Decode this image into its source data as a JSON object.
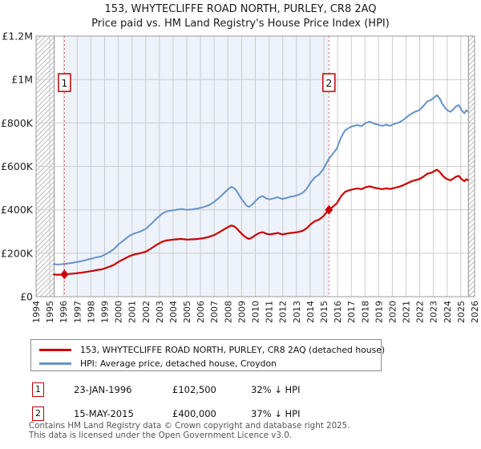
{
  "title": {
    "line1": "153, WHYTECLIFFE ROAD NORTH, PURLEY, CR8 2AQ",
    "line2": "Price paid vs. HM Land Registry's House Price Index (HPI)"
  },
  "colors": {
    "property_line": "#cc0000",
    "hpi_line": "#6593c9",
    "shade": "#edf2fb",
    "grid": "#cccccc",
    "frame": "#999999",
    "hatch": "#bbbbbb",
    "sale_dashed_line": "#e06060",
    "marker_fill": "#cc0000",
    "flag_border": "#bb0000",
    "tick_text": "#222222"
  },
  "chart_data": {
    "type": "line",
    "x_axis": {
      "min": 1994,
      "max": 2026,
      "tick_labels": [
        "1994",
        "1995",
        "1996",
        "1997",
        "1998",
        "1999",
        "2000",
        "2001",
        "2002",
        "2003",
        "2004",
        "2005",
        "2006",
        "2007",
        "2008",
        "2009",
        "2010",
        "2011",
        "2012",
        "2013",
        "2014",
        "2015",
        "2016",
        "2017",
        "2018",
        "2019",
        "2020",
        "2021",
        "2022",
        "2023",
        "2024",
        "2025",
        "2026"
      ]
    },
    "y_axis": {
      "min": 0,
      "max_thousands": 1200,
      "tick_values_thousands": [
        0,
        200,
        400,
        600,
        800,
        1000,
        1200
      ],
      "tick_labels": [
        "£0",
        "£200K",
        "£400K",
        "£600K",
        "£800K",
        "£1M",
        "£1.2M"
      ]
    },
    "values_unit": "GBP thousands",
    "no_data_hatch_regions": [
      [
        1994,
        1995.32
      ],
      [
        2025.55,
        2026
      ]
    ],
    "ownership_shade_region": [
      1996.07,
      2015.37
    ],
    "sales": [
      {
        "num": "1",
        "year": 1996.07,
        "value": 102.5
      },
      {
        "num": "2",
        "year": 2015.37,
        "value": 400
      }
    ],
    "series": [
      {
        "name": "HPI: Average price, detached house, Croydon",
        "color_key": "hpi_line",
        "width": 2,
        "points": [
          [
            1995.3,
            150
          ],
          [
            1995.55,
            148
          ],
          [
            1995.8,
            149
          ],
          [
            1996.07,
            151
          ],
          [
            1996.35,
            153
          ],
          [
            1996.65,
            156
          ],
          [
            1996.95,
            159
          ],
          [
            1997.25,
            163
          ],
          [
            1997.55,
            167
          ],
          [
            1997.85,
            172
          ],
          [
            1998.15,
            177
          ],
          [
            1998.45,
            182
          ],
          [
            1998.75,
            185
          ],
          [
            1999.05,
            195
          ],
          [
            1999.35,
            205
          ],
          [
            1999.7,
            220
          ],
          [
            2000.0,
            240
          ],
          [
            2000.4,
            260
          ],
          [
            2000.8,
            280
          ],
          [
            2001.2,
            292
          ],
          [
            2001.6,
            300
          ],
          [
            2002.0,
            312
          ],
          [
            2002.4,
            335
          ],
          [
            2002.8,
            360
          ],
          [
            2003.2,
            382
          ],
          [
            2003.5,
            392
          ],
          [
            2003.8,
            396
          ],
          [
            2004.2,
            400
          ],
          [
            2004.6,
            404
          ],
          [
            2005.0,
            400
          ],
          [
            2005.4,
            402
          ],
          [
            2005.8,
            406
          ],
          [
            2006.2,
            412
          ],
          [
            2006.6,
            421
          ],
          [
            2007.0,
            436
          ],
          [
            2007.4,
            458
          ],
          [
            2007.8,
            482
          ],
          [
            2008.05,
            497
          ],
          [
            2008.25,
            506
          ],
          [
            2008.45,
            500
          ],
          [
            2008.65,
            486
          ],
          [
            2008.85,
            464
          ],
          [
            2009.1,
            440
          ],
          [
            2009.35,
            420
          ],
          [
            2009.55,
            413
          ],
          [
            2009.8,
            426
          ],
          [
            2010.05,
            443
          ],
          [
            2010.3,
            458
          ],
          [
            2010.55,
            463
          ],
          [
            2010.8,
            452
          ],
          [
            2011.05,
            448
          ],
          [
            2011.35,
            453
          ],
          [
            2011.65,
            458
          ],
          [
            2011.95,
            450
          ],
          [
            2012.25,
            454
          ],
          [
            2012.55,
            460
          ],
          [
            2012.85,
            463
          ],
          [
            2013.15,
            469
          ],
          [
            2013.45,
            478
          ],
          [
            2013.75,
            497
          ],
          [
            2014.05,
            527
          ],
          [
            2014.35,
            550
          ],
          [
            2014.65,
            562
          ],
          [
            2014.95,
            586
          ],
          [
            2015.2,
            615
          ],
          [
            2015.37,
            635
          ],
          [
            2015.65,
            658
          ],
          [
            2015.95,
            682
          ],
          [
            2016.25,
            733
          ],
          [
            2016.55,
            766
          ],
          [
            2016.85,
            778
          ],
          [
            2017.15,
            786
          ],
          [
            2017.45,
            790
          ],
          [
            2017.75,
            785
          ],
          [
            2018.05,
            800
          ],
          [
            2018.35,
            806
          ],
          [
            2018.65,
            797
          ],
          [
            2018.95,
            792
          ],
          [
            2019.25,
            786
          ],
          [
            2019.55,
            792
          ],
          [
            2019.85,
            787
          ],
          [
            2020.15,
            796
          ],
          [
            2020.45,
            801
          ],
          [
            2020.75,
            812
          ],
          [
            2021.05,
            827
          ],
          [
            2021.35,
            841
          ],
          [
            2021.65,
            851
          ],
          [
            2021.95,
            858
          ],
          [
            2022.25,
            877
          ],
          [
            2022.55,
            899
          ],
          [
            2022.85,
            907
          ],
          [
            2023.05,
            918
          ],
          [
            2023.25,
            928
          ],
          [
            2023.45,
            913
          ],
          [
            2023.65,
            887
          ],
          [
            2023.85,
            869
          ],
          [
            2024.05,
            857
          ],
          [
            2024.25,
            851
          ],
          [
            2024.45,
            863
          ],
          [
            2024.65,
            877
          ],
          [
            2024.85,
            882
          ],
          [
            2025.05,
            859
          ],
          [
            2025.25,
            844
          ],
          [
            2025.4,
            858
          ],
          [
            2025.5,
            853
          ]
        ]
      },
      {
        "name": "153, WHYTECLIFFE ROAD NORTH, PURLEY, CR8 2AQ (detached house)",
        "color_key": "property_line",
        "width": 2.2,
        "points": [
          [
            1995.3,
            102
          ],
          [
            1995.55,
            101
          ],
          [
            1995.8,
            101
          ],
          [
            1996.07,
            102.5
          ],
          [
            1996.35,
            104
          ],
          [
            1996.65,
            106
          ],
          [
            1996.95,
            108
          ],
          [
            1997.25,
            110
          ],
          [
            1997.55,
            113
          ],
          [
            1997.85,
            116
          ],
          [
            1998.15,
            119
          ],
          [
            1998.45,
            123
          ],
          [
            1998.75,
            125
          ],
          [
            1999.05,
            131
          ],
          [
            1999.35,
            138
          ],
          [
            1999.7,
            147
          ],
          [
            2000.0,
            160
          ],
          [
            2000.4,
            173
          ],
          [
            2000.8,
            186
          ],
          [
            2001.2,
            195
          ],
          [
            2001.6,
            200
          ],
          [
            2002.0,
            207
          ],
          [
            2002.4,
            222
          ],
          [
            2002.8,
            239
          ],
          [
            2003.2,
            253
          ],
          [
            2003.5,
            259
          ],
          [
            2003.8,
            261
          ],
          [
            2004.2,
            264
          ],
          [
            2004.6,
            266
          ],
          [
            2005.0,
            263
          ],
          [
            2005.4,
            264
          ],
          [
            2005.8,
            266
          ],
          [
            2006.2,
            269
          ],
          [
            2006.6,
            275
          ],
          [
            2007.0,
            284
          ],
          [
            2007.4,
            298
          ],
          [
            2007.8,
            313
          ],
          [
            2008.05,
            322
          ],
          [
            2008.25,
            328
          ],
          [
            2008.45,
            324
          ],
          [
            2008.65,
            314
          ],
          [
            2008.85,
            300
          ],
          [
            2009.1,
            284
          ],
          [
            2009.35,
            271
          ],
          [
            2009.55,
            266
          ],
          [
            2009.8,
            274
          ],
          [
            2010.05,
            285
          ],
          [
            2010.3,
            294
          ],
          [
            2010.55,
            297
          ],
          [
            2010.8,
            290
          ],
          [
            2011.05,
            287
          ],
          [
            2011.35,
            290
          ],
          [
            2011.65,
            293
          ],
          [
            2011.95,
            287
          ],
          [
            2012.25,
            290
          ],
          [
            2012.55,
            293
          ],
          [
            2012.85,
            295
          ],
          [
            2013.15,
            298
          ],
          [
            2013.45,
            303
          ],
          [
            2013.75,
            315
          ],
          [
            2014.05,
            334
          ],
          [
            2014.35,
            348
          ],
          [
            2014.65,
            355
          ],
          [
            2014.95,
            370
          ],
          [
            2015.2,
            388
          ],
          [
            2015.37,
            400
          ],
          [
            2015.65,
            414
          ],
          [
            2015.95,
            430
          ],
          [
            2016.25,
            462
          ],
          [
            2016.55,
            483
          ],
          [
            2016.85,
            490
          ],
          [
            2017.15,
            495
          ],
          [
            2017.45,
            498
          ],
          [
            2017.75,
            495
          ],
          [
            2018.05,
            504
          ],
          [
            2018.35,
            508
          ],
          [
            2018.65,
            502
          ],
          [
            2018.95,
            499
          ],
          [
            2019.25,
            495
          ],
          [
            2019.55,
            499
          ],
          [
            2019.85,
            496
          ],
          [
            2020.15,
            501
          ],
          [
            2020.45,
            505
          ],
          [
            2020.75,
            512
          ],
          [
            2021.05,
            521
          ],
          [
            2021.35,
            530
          ],
          [
            2021.65,
            536
          ],
          [
            2021.95,
            541
          ],
          [
            2022.25,
            552
          ],
          [
            2022.55,
            566
          ],
          [
            2022.85,
            571
          ],
          [
            2023.05,
            578
          ],
          [
            2023.25,
            585
          ],
          [
            2023.45,
            575
          ],
          [
            2023.65,
            559
          ],
          [
            2023.85,
            547
          ],
          [
            2024.05,
            540
          ],
          [
            2024.25,
            536
          ],
          [
            2024.45,
            544
          ],
          [
            2024.65,
            553
          ],
          [
            2024.85,
            556
          ],
          [
            2025.05,
            541
          ],
          [
            2025.25,
            532
          ],
          [
            2025.4,
            541
          ],
          [
            2025.5,
            537
          ]
        ]
      }
    ]
  },
  "legend": {
    "items": [
      {
        "label": "153, WHYTECLIFFE ROAD NORTH, PURLEY, CR8 2AQ (detached house)",
        "color": "#cc0000"
      },
      {
        "label": "HPI: Average price, detached house, Croydon",
        "color": "#6593c9"
      }
    ]
  },
  "transactions": [
    {
      "num": "1",
      "date": "23-JAN-1996",
      "price": "£102,500",
      "hpi": "32% ↓ HPI"
    },
    {
      "num": "2",
      "date": "15-MAY-2015",
      "price": "£400,000",
      "hpi": "37% ↓ HPI"
    }
  ],
  "footer": {
    "line1": "Contains HM Land Registry data © Crown copyright and database right 2025.",
    "line2": "This data is licensed under the Open Government Licence v3.0."
  }
}
